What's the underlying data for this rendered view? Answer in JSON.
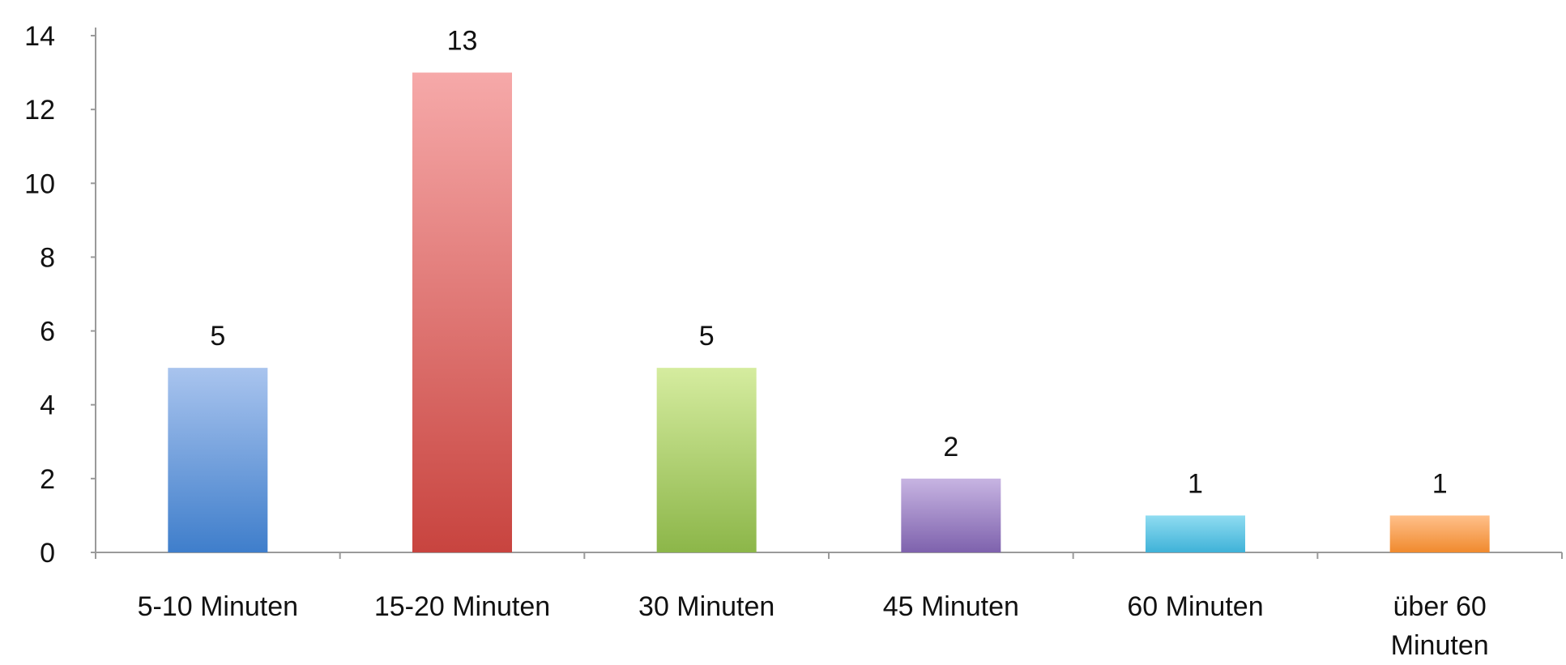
{
  "chart_data": {
    "type": "bar",
    "categories": [
      [
        "5-10 Minuten"
      ],
      [
        "15-20 Minuten"
      ],
      [
        "30 Minuten"
      ],
      [
        "45 Minuten"
      ],
      [
        "60 Minuten"
      ],
      [
        "über 60",
        "Minuten"
      ]
    ],
    "values": [
      5,
      13,
      5,
      2,
      1,
      1
    ],
    "data_labels": [
      "5",
      "13",
      "5",
      "2",
      "1",
      "1"
    ],
    "y_ticks": [
      "0",
      "2",
      "4",
      "6",
      "8",
      "10",
      "12",
      "14"
    ],
    "ylim": [
      0,
      14
    ],
    "grid": false,
    "legend": false,
    "bar_colors": [
      [
        "#a9c4ee",
        "#3f7ecb"
      ],
      [
        "#f6a9a9",
        "#c8443f"
      ],
      [
        "#d5ec9f",
        "#8cb649"
      ],
      [
        "#c7b4e2",
        "#7e62ad"
      ],
      [
        "#8fdcf1",
        "#3fb2d8"
      ],
      [
        "#ffc08a",
        "#f08a2e"
      ]
    ],
    "axis_color": "#9a9a9a"
  }
}
